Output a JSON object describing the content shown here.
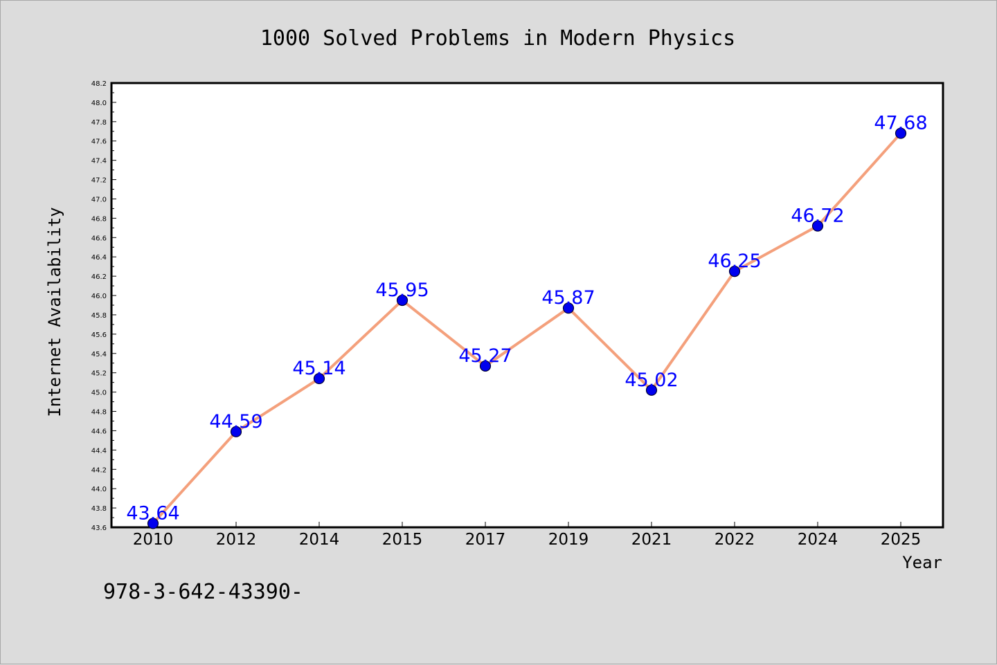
{
  "chart_data": {
    "type": "line",
    "title": "1000 Solved Problems in Modern Physics",
    "xlabel": "Year",
    "ylabel": "Internet Availability",
    "categories": [
      "2010",
      "2012",
      "2014",
      "2015",
      "2017",
      "2019",
      "2021",
      "2022",
      "2024",
      "2025"
    ],
    "series": [
      {
        "values": [
          43.64,
          44.59,
          45.14,
          45.95,
          45.27,
          45.87,
          45.02,
          46.25,
          46.72,
          47.68
        ],
        "line_color": "#f4a07c",
        "marker_color": "#0000ee"
      }
    ],
    "data_labels": [
      "43.64",
      "44.59",
      "45.14",
      "45.95",
      "45.27",
      "45.87",
      "45.02",
      "46.25",
      "46.72",
      "47.68"
    ],
    "ylim": [
      43.6,
      48.2
    ],
    "yticks": [
      "43.6",
      "43.8",
      "44.0",
      "44.2",
      "44.4",
      "44.6",
      "44.8",
      "45.0",
      "45.2",
      "45.4",
      "45.6",
      "45.8",
      "46.0",
      "46.2",
      "46.4",
      "46.6",
      "46.8",
      "47.0",
      "47.2",
      "47.4",
      "47.6",
      "47.8",
      "48.0",
      "48.2"
    ],
    "grid": false,
    "legend": "none"
  },
  "footnote": "978-3-642-43390-",
  "colors": {
    "background": "#dcdcdc",
    "plot_area": "#ffffff",
    "data_label": "#0000ff"
  }
}
